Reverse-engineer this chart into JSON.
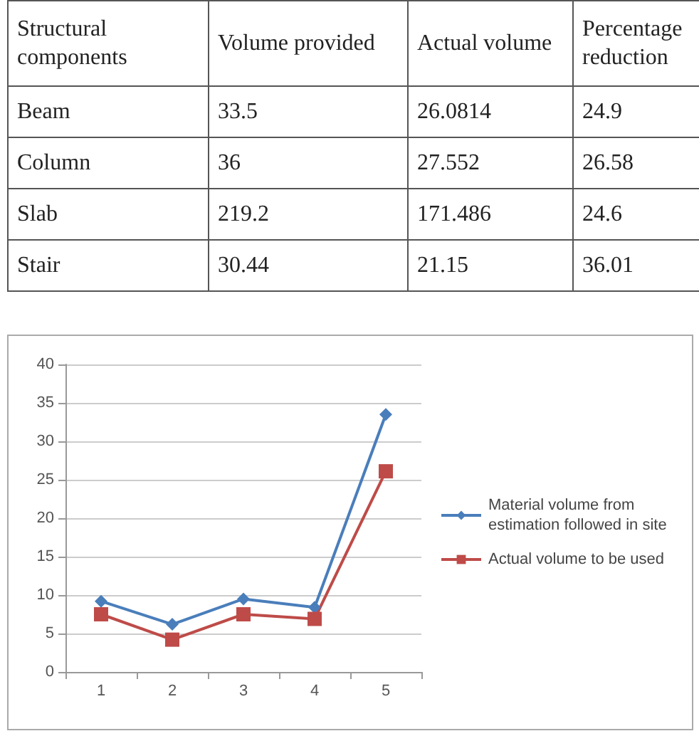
{
  "chart_data": [
    {
      "type": "other",
      "annotations": [
        "Structural components",
        "Volume provided",
        "Actual volume",
        "Percentage reduction",
        "Beam",
        "33.5",
        "26.0814",
        "24.9",
        "Column",
        "36",
        "27.552",
        "26.58",
        "Slab",
        "219.2",
        "171.486",
        "24.6",
        "Stair",
        "30.44",
        "21.15",
        "36.01"
      ]
    },
    {
      "type": "line",
      "categories": [
        "1",
        "2",
        "3",
        "4",
        "5"
      ],
      "series": [
        {
          "name": "Material volume from estimation followed in site",
          "color": "#4a7ebb",
          "marker": "diamond",
          "values": [
            9.2,
            6.2,
            9.5,
            8.4,
            33.5
          ]
        },
        {
          "name": "Actual volume to be used",
          "color": "#be4b48",
          "marker": "square",
          "values": [
            7.5,
            4.2,
            7.5,
            6.9,
            26.1
          ]
        }
      ],
      "ylim": [
        0,
        40
      ],
      "yticks": [
        0,
        5,
        10,
        15,
        20,
        25,
        30,
        35,
        40
      ],
      "grid": "y",
      "legend": "right"
    }
  ]
}
